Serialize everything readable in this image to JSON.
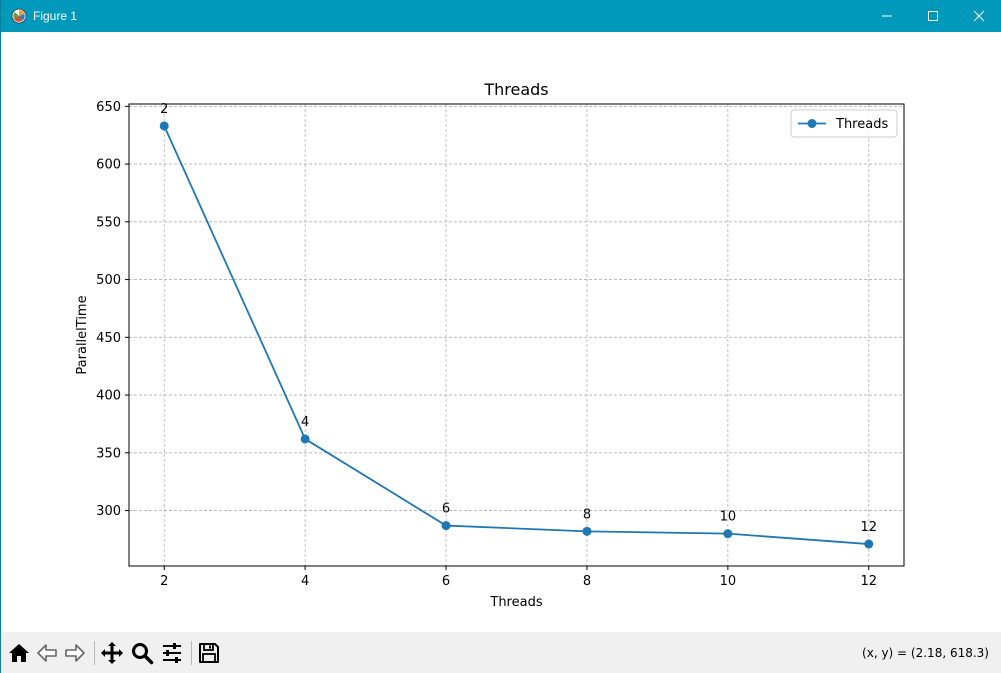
{
  "window": {
    "title": "Figure 1",
    "titlebar_color": "#0099bb",
    "controls": [
      "minimize-icon",
      "maximize-icon",
      "close-icon"
    ]
  },
  "toolbar": {
    "buttons": [
      "home-icon",
      "back-icon",
      "forward-icon",
      "pan-icon",
      "zoom-icon",
      "configure-subplots-icon",
      "save-icon"
    ],
    "coords_text": "(x, y) = (2.18, 618.3)"
  },
  "chart_data": {
    "type": "line",
    "title": "Threads",
    "xlabel": "Threads",
    "ylabel": "ParallelTime",
    "x": [
      2,
      4,
      6,
      8,
      10,
      12
    ],
    "series": [
      {
        "name": "Threads",
        "color": "#1f77b4",
        "marker": "circle",
        "values": [
          633,
          362,
          287,
          282,
          280,
          271
        ]
      }
    ],
    "point_labels": [
      "2",
      "4",
      "6",
      "8",
      "10",
      "12"
    ],
    "xticks": [
      "2",
      "4",
      "6",
      "8",
      "10",
      "12"
    ],
    "yticks": [
      "300",
      "350",
      "400",
      "450",
      "500",
      "550",
      "600",
      "650"
    ],
    "xlim": [
      1.5,
      12.5
    ],
    "ylim": [
      252,
      652
    ],
    "grid": true,
    "legend": "top-right"
  }
}
